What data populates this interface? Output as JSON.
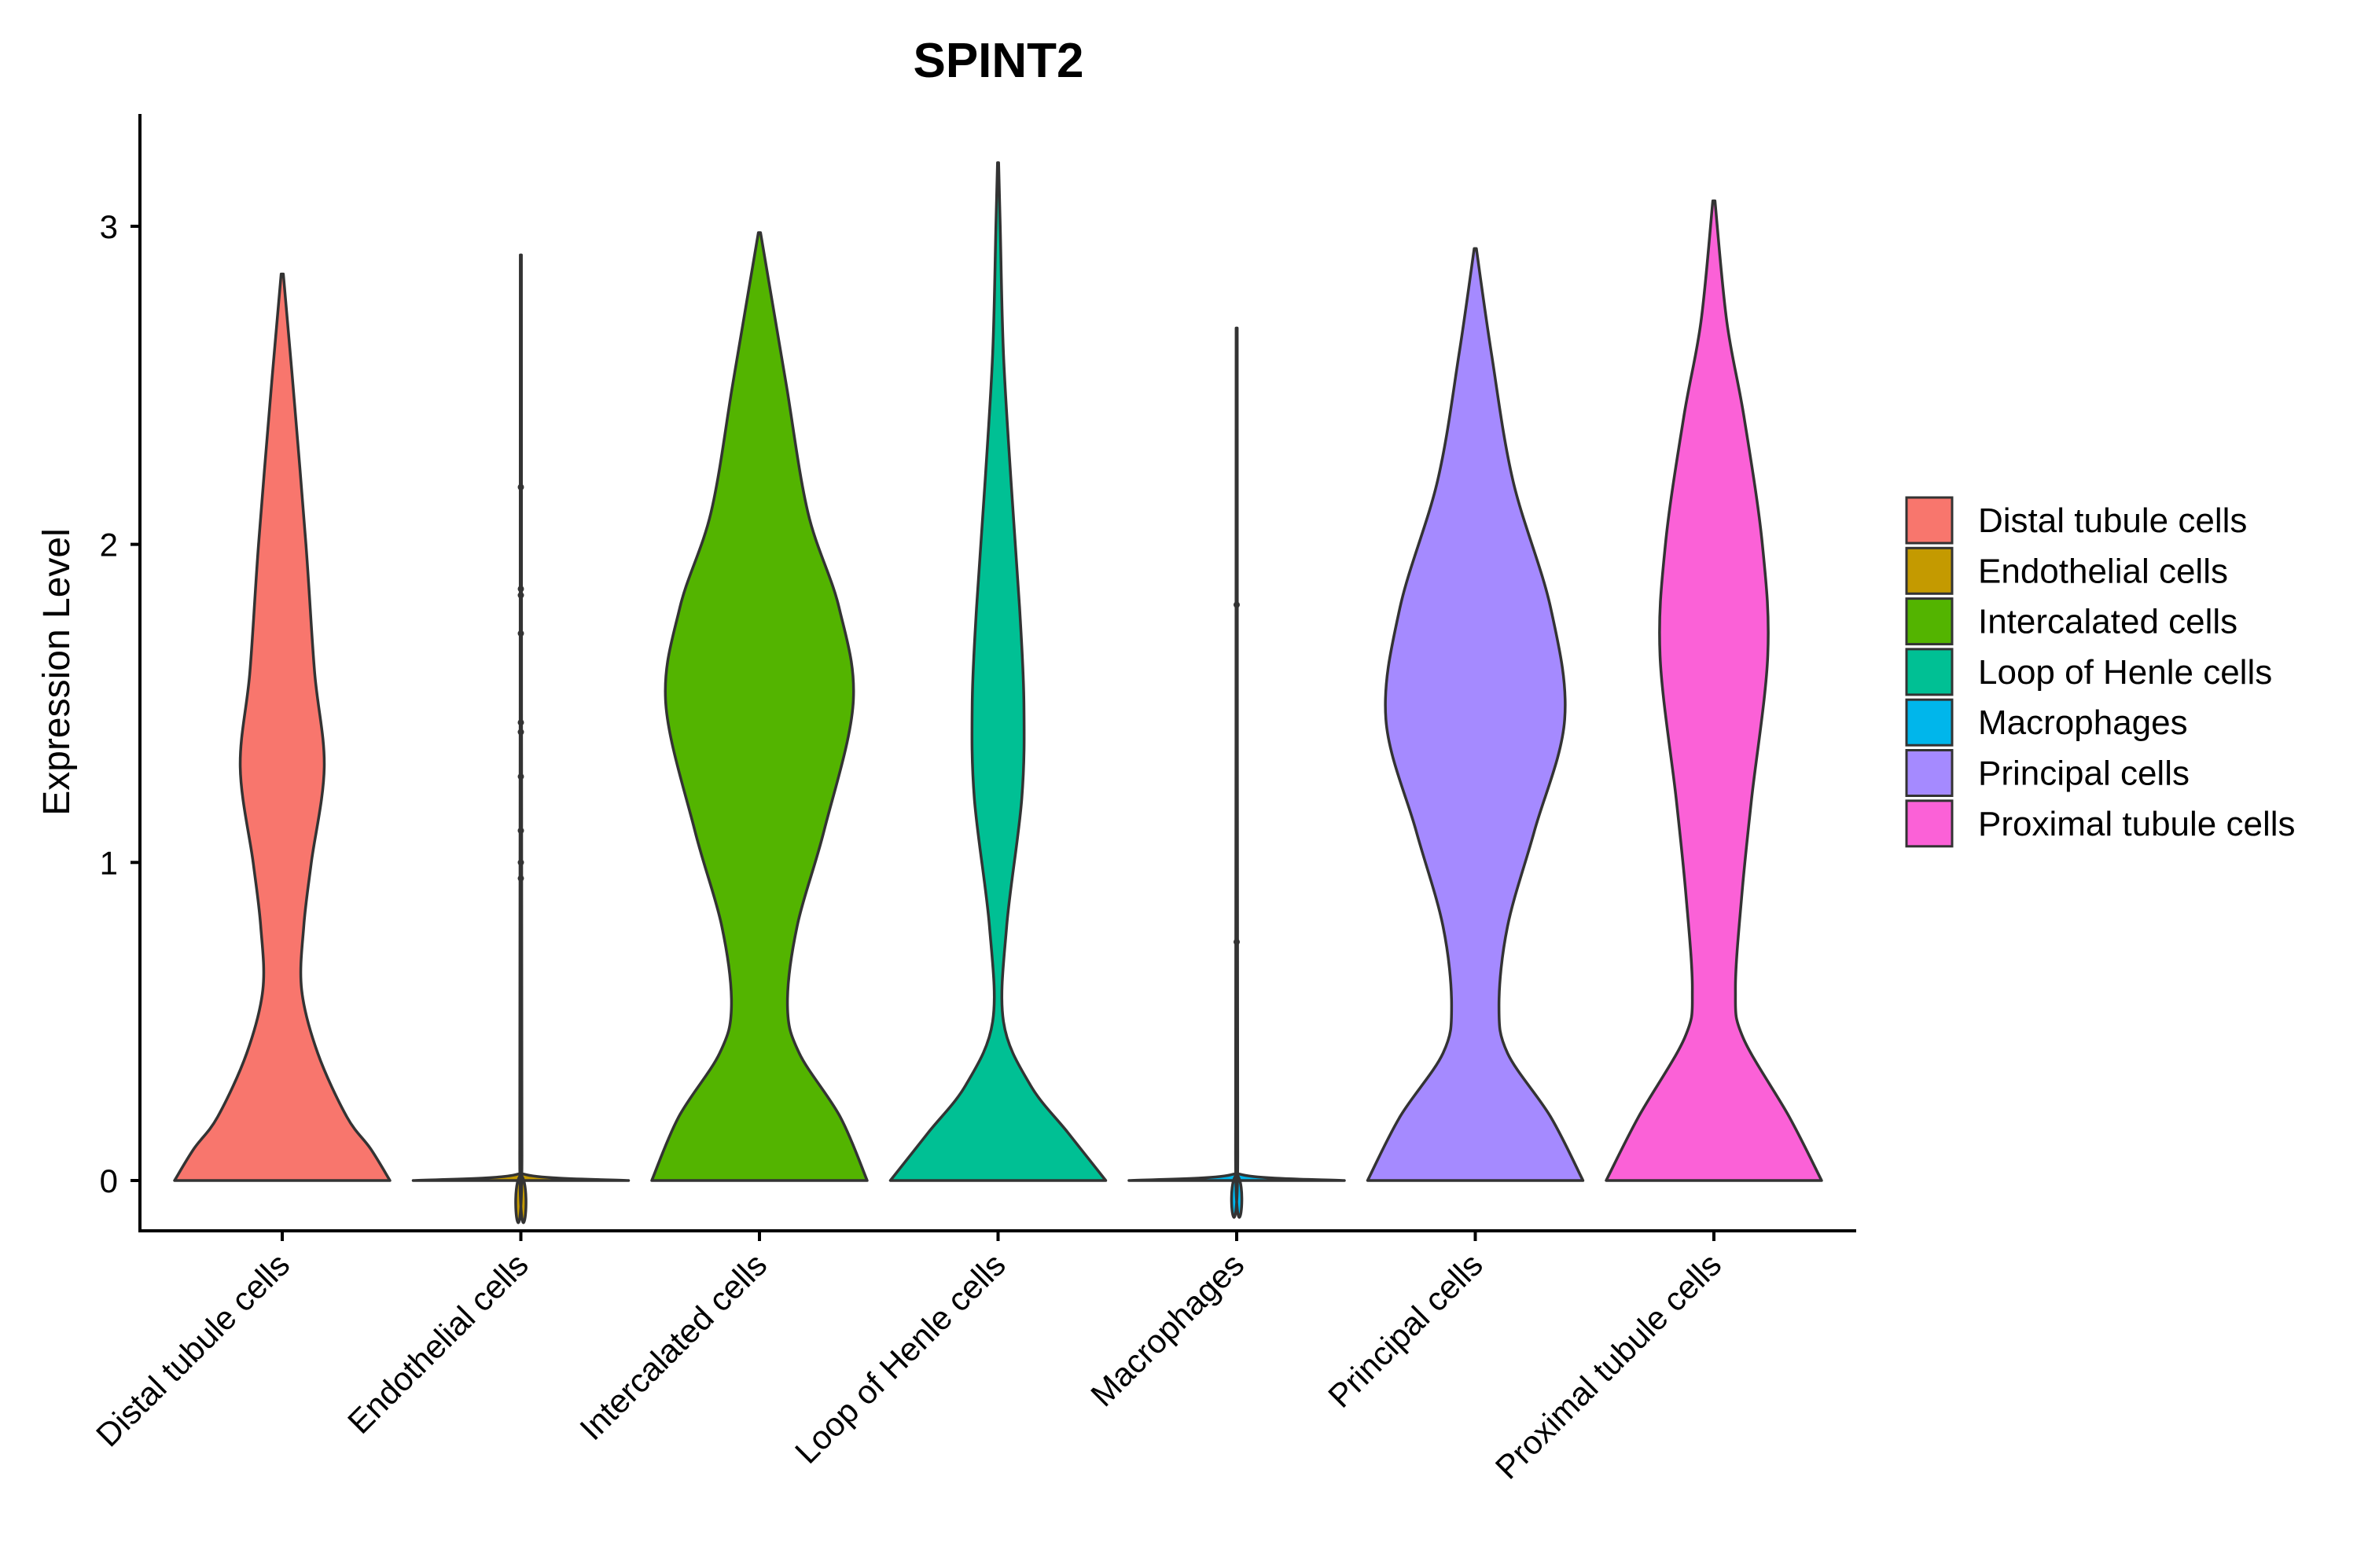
{
  "chart_data": {
    "type": "violin",
    "title": "SPINT2",
    "xlabel": "",
    "ylabel": "Expression Level",
    "ylim": [
      -0.16,
      3.35
    ],
    "yticks": [
      0,
      1,
      2,
      3
    ],
    "grid": false,
    "legend_position": "right",
    "categories": [
      "Distal tubule cells",
      "Endothelial cells",
      "Intercalated cells",
      "Loop of Henle cells",
      "Macrophages",
      "Principal cells",
      "Proximal tubule cells"
    ],
    "colors": [
      "#F8766D",
      "#C49A00",
      "#53B400",
      "#00C094",
      "#00B6EB",
      "#A58AFF",
      "#FB61D7"
    ],
    "series": [
      {
        "name": "Distal tubule cells",
        "max": 2.85,
        "density": [
          [
            0,
            1
          ],
          [
            0.1,
            0.82
          ],
          [
            0.2,
            0.6
          ],
          [
            0.4,
            0.33
          ],
          [
            0.6,
            0.18
          ],
          [
            0.8,
            0.2
          ],
          [
            1.0,
            0.27
          ],
          [
            1.3,
            0.39
          ],
          [
            1.6,
            0.3
          ],
          [
            2.0,
            0.22
          ],
          [
            2.5,
            0.1
          ],
          [
            2.85,
            0.01
          ]
        ],
        "points": []
      },
      {
        "name": "Endothelial cells",
        "max": 2.91,
        "density": [
          [
            0,
            1
          ],
          [
            0.02,
            0.03
          ],
          [
            0.1,
            0.01
          ],
          [
            2.91,
            0.005
          ]
        ],
        "points": [
          0.95,
          1.0,
          1.1,
          1.27,
          1.41,
          1.44,
          1.72,
          1.84,
          1.86,
          2.18
        ]
      },
      {
        "name": "Intercalated cells",
        "max": 2.98,
        "density": [
          [
            0,
            1
          ],
          [
            0.2,
            0.75
          ],
          [
            0.4,
            0.37
          ],
          [
            0.55,
            0.26
          ],
          [
            0.8,
            0.35
          ],
          [
            1.1,
            0.6
          ],
          [
            1.5,
            0.87
          ],
          [
            1.8,
            0.74
          ],
          [
            2.1,
            0.45
          ],
          [
            2.5,
            0.25
          ],
          [
            2.8,
            0.1
          ],
          [
            2.98,
            0.01
          ]
        ],
        "points": []
      },
      {
        "name": "Loop of Henle cells",
        "max": 3.2,
        "density": [
          [
            0,
            1
          ],
          [
            0.15,
            0.65
          ],
          [
            0.3,
            0.3
          ],
          [
            0.5,
            0.05
          ],
          [
            0.8,
            0.08
          ],
          [
            1.2,
            0.22
          ],
          [
            1.5,
            0.24
          ],
          [
            1.8,
            0.2
          ],
          [
            2.2,
            0.12
          ],
          [
            2.6,
            0.05
          ],
          [
            3.0,
            0.02
          ],
          [
            3.2,
            0.005
          ]
        ],
        "points": []
      },
      {
        "name": "Macrophages",
        "max": 2.68,
        "density": [
          [
            0,
            1
          ],
          [
            0.02,
            0.03
          ],
          [
            0.1,
            0.01
          ],
          [
            2.68,
            0.005
          ]
        ],
        "points": [
          0.75,
          1.81
        ]
      },
      {
        "name": "Principal cells",
        "max": 2.93,
        "density": [
          [
            0,
            1
          ],
          [
            0.2,
            0.7
          ],
          [
            0.4,
            0.3
          ],
          [
            0.55,
            0.22
          ],
          [
            0.8,
            0.3
          ],
          [
            1.1,
            0.55
          ],
          [
            1.45,
            0.83
          ],
          [
            1.8,
            0.7
          ],
          [
            2.2,
            0.35
          ],
          [
            2.6,
            0.15
          ],
          [
            2.93,
            0.01
          ]
        ],
        "points": []
      },
      {
        "name": "Proximal tubule cells",
        "max": 3.08,
        "density": [
          [
            0,
            1
          ],
          [
            0.2,
            0.7
          ],
          [
            0.45,
            0.27
          ],
          [
            0.6,
            0.2
          ],
          [
            0.9,
            0.26
          ],
          [
            1.2,
            0.35
          ],
          [
            1.65,
            0.5
          ],
          [
            2.0,
            0.45
          ],
          [
            2.4,
            0.28
          ],
          [
            2.7,
            0.12
          ],
          [
            3.08,
            0.01
          ]
        ],
        "points": []
      }
    ]
  }
}
